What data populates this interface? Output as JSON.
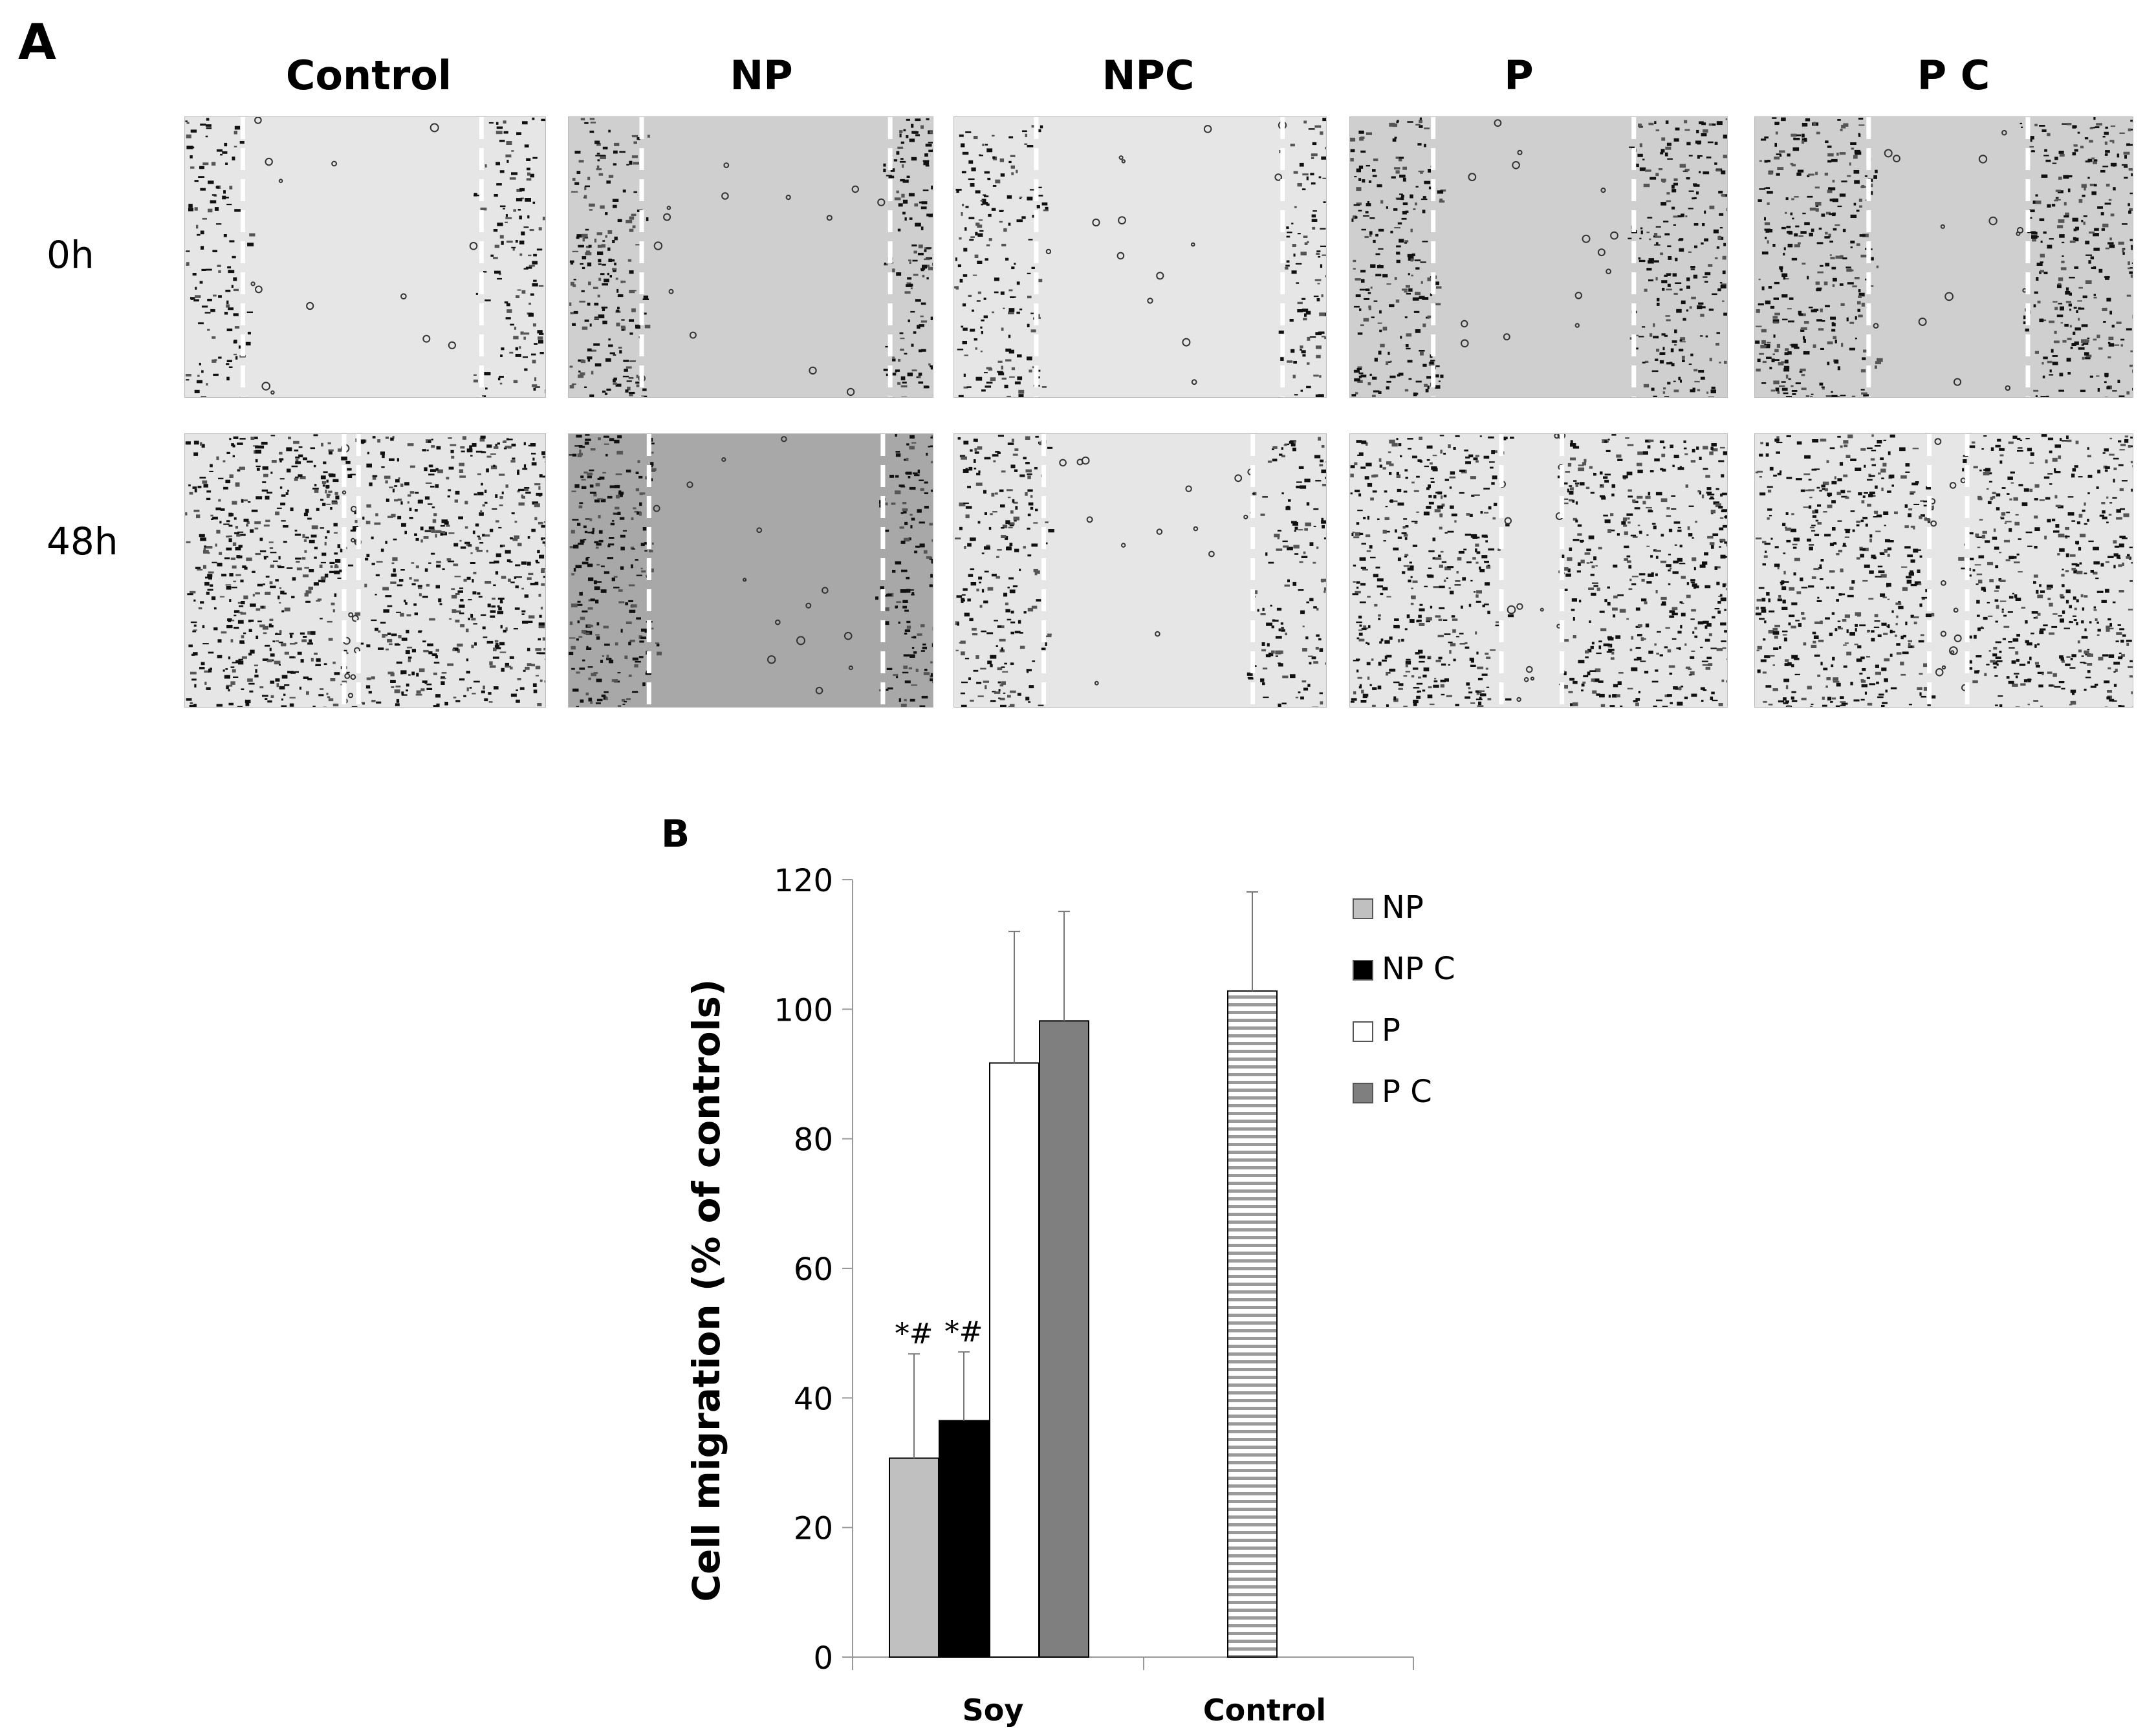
{
  "figure": {
    "panel_a_label": "A",
    "panel_b_label": "B",
    "columns": [
      "Control",
      "NP",
      "NPC",
      "P",
      "P C"
    ],
    "rows": [
      "0h",
      "48h"
    ]
  },
  "colors": {
    "np": "#c0c0c0",
    "npc": "#000000",
    "p": "#ffffff",
    "pc": "#7f7f7f",
    "control": "#ffffff",
    "control_stripe": "#9a9a9a",
    "panel_bg_light": "#e6e6e6",
    "panel_bg_dark": "#a8a8a8"
  },
  "micrographs": [
    {
      "column": "Control",
      "row": "0h",
      "gap": [
        0.16,
        0.82
      ],
      "density": 0.55,
      "tone": "light"
    },
    {
      "column": "NP",
      "row": "0h",
      "gap": [
        0.2,
        0.88
      ],
      "density": 0.75,
      "tone": "mid"
    },
    {
      "column": "NPC",
      "row": "0h",
      "gap": [
        0.22,
        0.88
      ],
      "density": 0.6,
      "tone": "light"
    },
    {
      "column": "P",
      "row": "0h",
      "gap": [
        0.22,
        0.75
      ],
      "density": 0.7,
      "tone": "mid"
    },
    {
      "column": "P C",
      "row": "0h",
      "gap": [
        0.3,
        0.72
      ],
      "density": 0.75,
      "tone": "mid"
    },
    {
      "column": "Control",
      "row": "48h",
      "gap": [
        0.44,
        0.48
      ],
      "density": 0.8,
      "tone": "light"
    },
    {
      "column": "NP",
      "row": "48h",
      "gap": [
        0.22,
        0.86
      ],
      "density": 0.75,
      "tone": "dark"
    },
    {
      "column": "NPC",
      "row": "48h",
      "gap": [
        0.24,
        0.8
      ],
      "density": 0.6,
      "tone": "light"
    },
    {
      "column": "P",
      "row": "48h",
      "gap": [
        0.4,
        0.56
      ],
      "density": 0.75,
      "tone": "light"
    },
    {
      "column": "P C",
      "row": "48h",
      "gap": [
        0.46,
        0.56
      ],
      "density": 0.75,
      "tone": "light"
    }
  ],
  "chart_data": {
    "type": "bar",
    "title": "",
    "xlabel": "",
    "ylabel": "Cell migration (% of controls)",
    "ylim": [
      0,
      120
    ],
    "yticks": [
      "0",
      "20",
      "40",
      "60",
      "80",
      "100",
      "120"
    ],
    "categories": [
      "Soy",
      "Control"
    ],
    "grid": false,
    "legend_position": "right",
    "series": [
      {
        "name": "NP",
        "values": [
          30.7,
          null
        ],
        "errors": [
          16.1,
          null
        ],
        "annotation": [
          "*#",
          null
        ],
        "color_key": "np"
      },
      {
        "name": "NP C",
        "values": [
          36.5,
          null
        ],
        "errors": [
          10.6,
          null
        ],
        "annotation": [
          "*#",
          null
        ],
        "color_key": "npc"
      },
      {
        "name": "P",
        "values": [
          91.7,
          null
        ],
        "errors": [
          20.3,
          null
        ],
        "annotation": [
          null,
          null
        ],
        "color_key": "p"
      },
      {
        "name": "P C",
        "values": [
          98.2,
          null
        ],
        "errors": [
          16.9,
          null
        ],
        "annotation": [
          null,
          null
        ],
        "color_key": "pc"
      }
    ],
    "control_bar": {
      "category": "Control",
      "value": 102.8,
      "error": 15.3,
      "pattern": "horizontal-stripes"
    }
  }
}
